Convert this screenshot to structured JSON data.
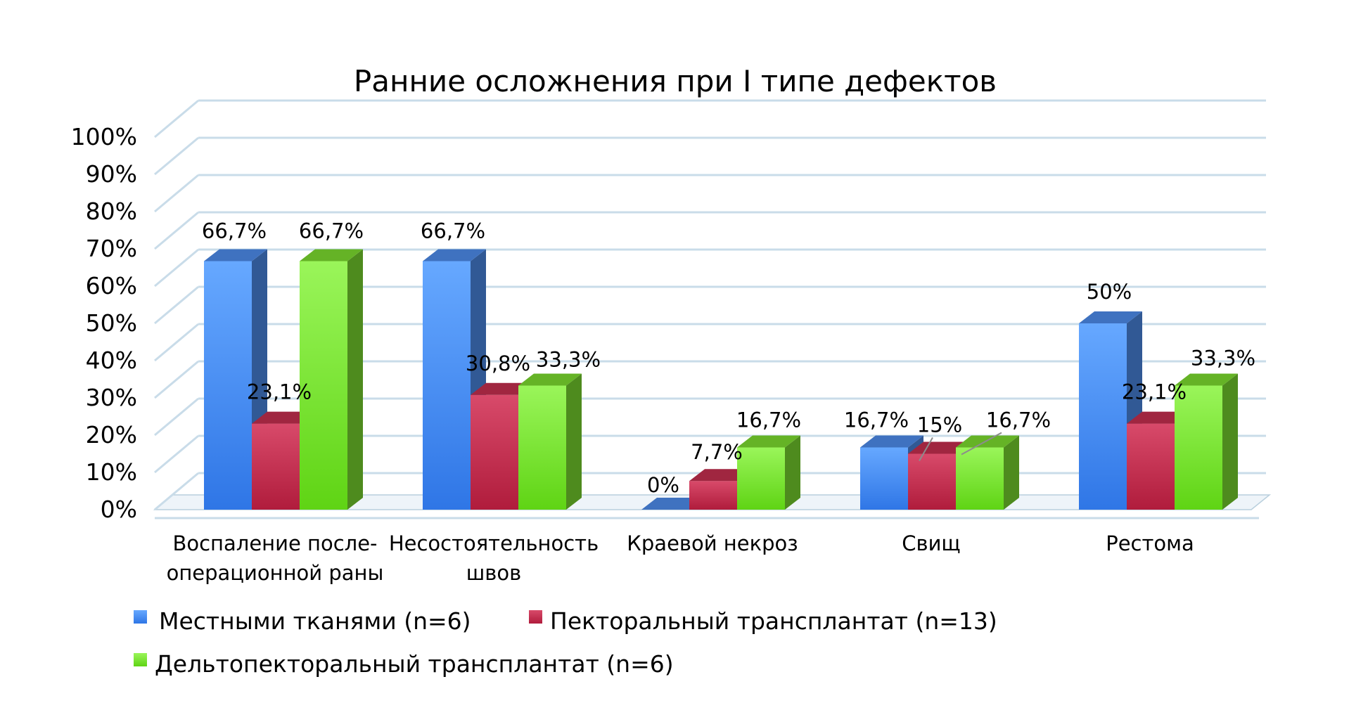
{
  "chart_data": {
    "type": "bar",
    "title": "Ранние осложнения при I типе дефектов",
    "xlabel": "",
    "ylabel": "",
    "ylim": [
      0,
      100
    ],
    "y_ticks": [
      "0%",
      "10%",
      "20%",
      "30%",
      "40%",
      "50%",
      "60%",
      "70%",
      "80%",
      "90%",
      "100%"
    ],
    "grid": true,
    "legend_position": "bottom",
    "categories": [
      [
        "Воспаление после-",
        "операционной раны"
      ],
      [
        "Несостоятельность",
        "швов"
      ],
      [
        "Краевой некроз"
      ],
      [
        "Свищ"
      ],
      [
        "Рестома"
      ]
    ],
    "series": [
      {
        "name": "Местными тканями (n=6)",
        "color": "#4f8ff0",
        "values": [
          66.7,
          66.7,
          0,
          16.7,
          50
        ],
        "labels": [
          "66,7%",
          "66,7%",
          "0%",
          "16,7%",
          "50%"
        ]
      },
      {
        "name": "Пекторальный трансплантат (n=13)",
        "color": "#c83050",
        "values": [
          23.1,
          30.8,
          7.7,
          15,
          23.1
        ],
        "labels": [
          "23,1%",
          "30,8%",
          "7,7%",
          "15%",
          "23,1%"
        ]
      },
      {
        "name": "Дельтопекторальный трансплантат (n=6)",
        "color": "#7ee030",
        "values": [
          66.7,
          33.3,
          16.7,
          16.7,
          33.3
        ],
        "labels": [
          "66,7%",
          "33,3%",
          "16,7%",
          "16,7%",
          "33,3%"
        ]
      }
    ]
  }
}
